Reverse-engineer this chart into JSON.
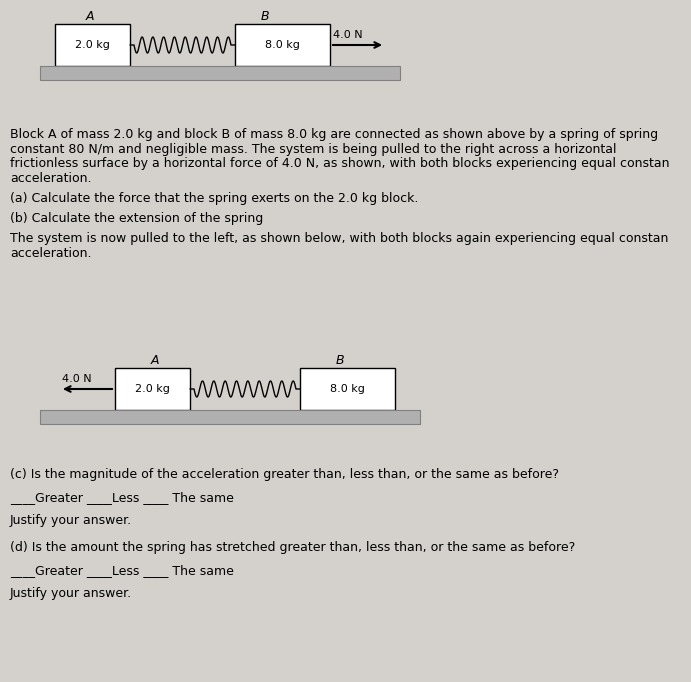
{
  "bg_color": "#d4d0cb",
  "white": "#ffffff",
  "surface_color": "#b0b0b0",
  "surface_edge": "#808080",
  "diagram1": {
    "blockA_label": "2.0 kg",
    "blockA_header": "A",
    "blockB_label": "8.0 kg",
    "blockB_header": "B",
    "force_label": "4.0 N",
    "arrow_dir": "right",
    "n_coils": 9
  },
  "diagram2": {
    "blockA_label": "2.0 kg",
    "blockA_header": "A",
    "blockB_label": "8.0 kg",
    "blockB_header": "B",
    "force_label": "4.0 N",
    "arrow_dir": "left",
    "n_coils": 9
  },
  "para1_line1": "Block A of mass 2.0 kg and block B of mass 8.0 kg are connected as shown above by a spring of spring",
  "para1_line2": "constant 80 N/m and negligible mass. The system is being pulled to the right across a horizontal",
  "para1_line3": "frictionless surface by a horizontal force of 4.0 N, as shown, with both blocks experiencing equal constan",
  "para1_line4": "acceleration.",
  "qa": "(a) Calculate the force that the spring exerts on the 2.0 kg block.",
  "qb": "(b) Calculate the extension of the spring",
  "para2_line1": "The system is now pulled to the left, as shown below, with both blocks again experiencing equal constan",
  "para2_line2": "acceleration.",
  "qc": "(c) Is the magnitude of the acceleration greater than, less than, or the same as before?",
  "choices_c": "____Greater ____Less ____ The same",
  "justify1": "Justify your answer.",
  "qd": "(d) Is the amount the spring has stretched greater than, less than, or the same as before?",
  "choices_d": "____Greater ____Less ____ The same",
  "justify2": "Justify your answer.",
  "font_size": 9.0,
  "font_size_small": 8.0
}
